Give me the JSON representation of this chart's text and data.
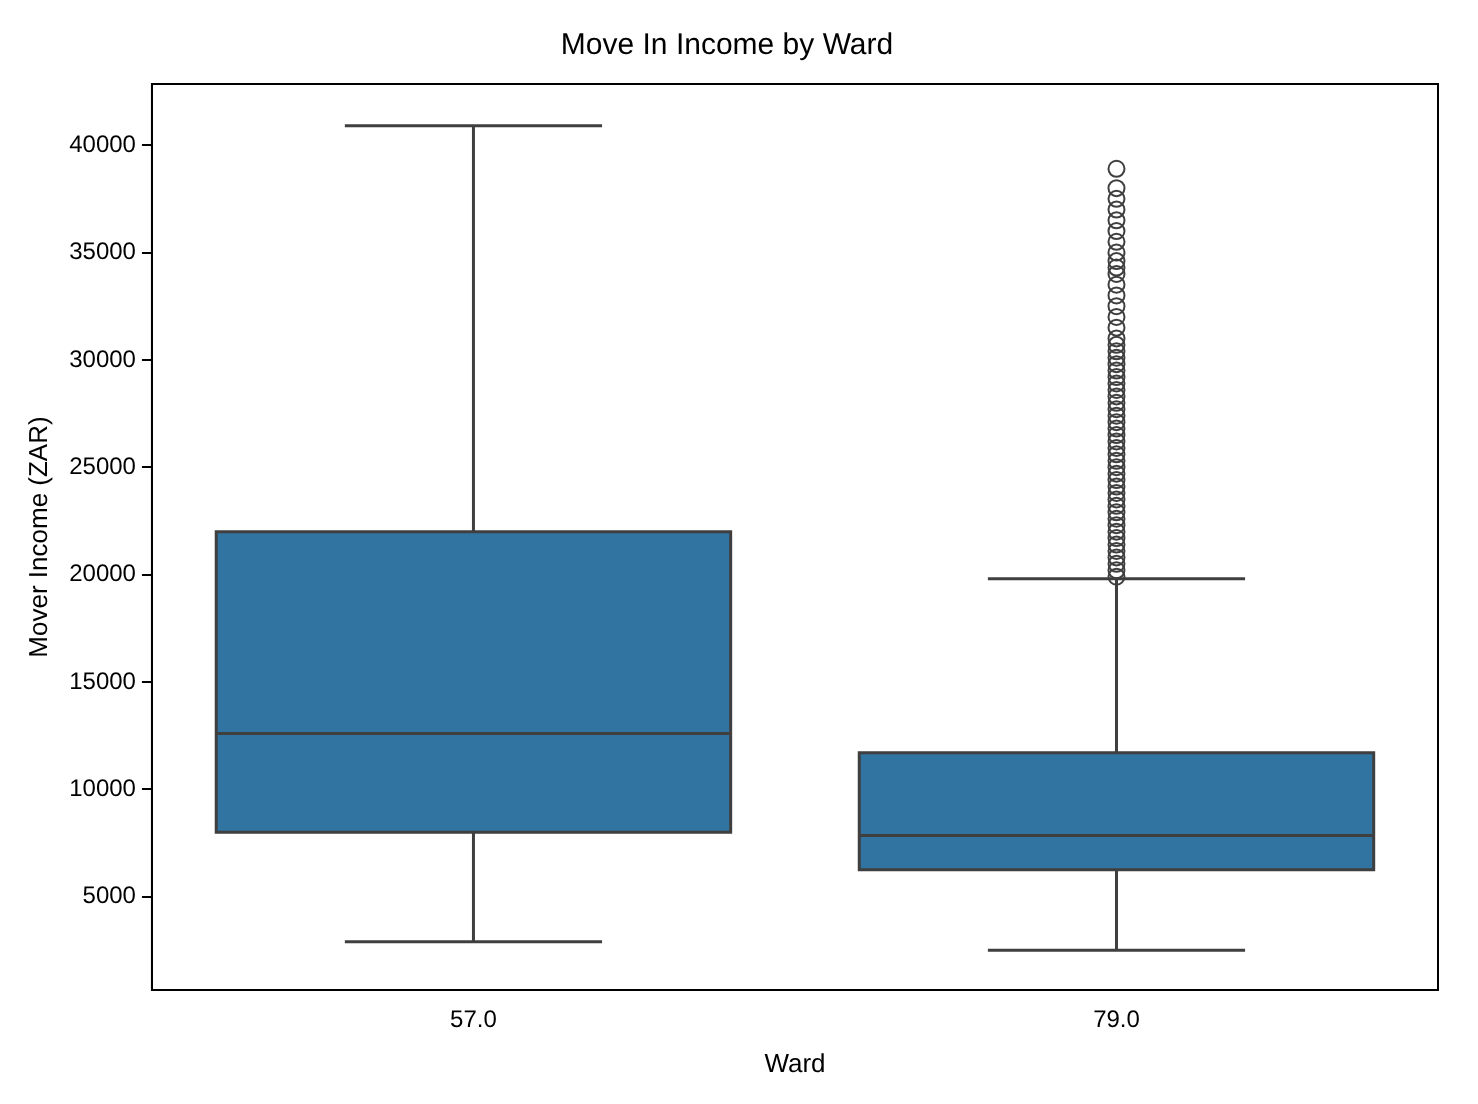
{
  "chart_data": {
    "type": "box",
    "title": "Move In Income by Ward",
    "xlabel": "Ward",
    "ylabel": "Mover Income (ZAR)",
    "categories": [
      "57.0",
      "79.0"
    ],
    "color": "#3274a1",
    "boxes": [
      {
        "low": 2900,
        "q1": 8000,
        "median": 12600,
        "q3": 22000,
        "high": 40900
      },
      {
        "low": 2500,
        "q1": 6250,
        "median": 7850,
        "q3": 11700,
        "high": 19800,
        "outliers": [
          19900,
          20200,
          20500,
          20800,
          21100,
          21400,
          21700,
          22000,
          22300,
          22600,
          22900,
          23200,
          23500,
          23800,
          24100,
          24400,
          24700,
          25000,
          25300,
          25600,
          25900,
          26200,
          26500,
          26800,
          27100,
          27400,
          27700,
          28000,
          28300,
          28600,
          28900,
          29200,
          29500,
          29800,
          30100,
          30400,
          30700,
          31000,
          31500,
          32000,
          32500,
          33000,
          33500,
          34000,
          34300,
          34600,
          35000,
          35500,
          36000,
          36500,
          37000,
          37500,
          38000,
          38900
        ]
      }
    ],
    "ylim": [
      650,
      42850
    ],
    "yticks": [
      5000,
      10000,
      15000,
      20000,
      25000,
      30000,
      35000,
      40000
    ],
    "grid": false
  }
}
